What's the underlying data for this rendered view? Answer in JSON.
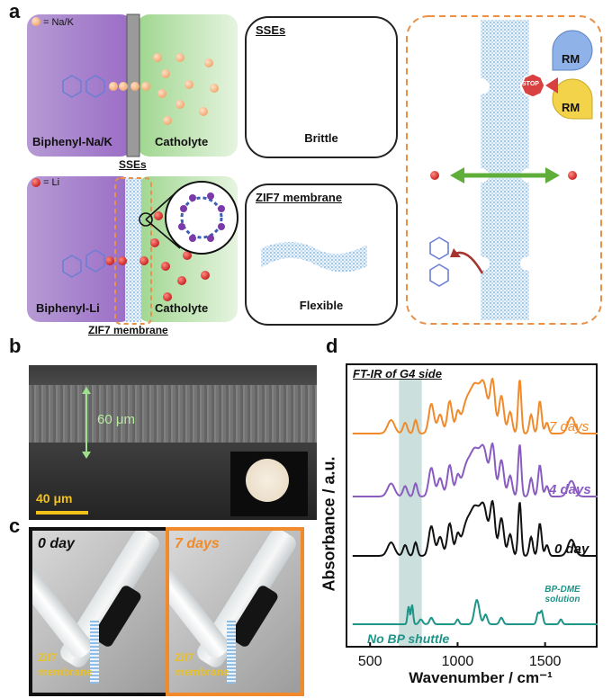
{
  "panels": {
    "a": "a",
    "b": "b",
    "c": "c",
    "d": "d"
  },
  "panel_a": {
    "top": {
      "legend_text": "= Na/K",
      "left_label": "Biphenyl-Na/K",
      "right_label": "Catholyte",
      "separator_label": "SSEs"
    },
    "bottom": {
      "legend_text": "= Li",
      "left_label": "Biphenyl-Li",
      "right_label": "Catholyte",
      "separator_label": "ZIF7 membrane"
    },
    "sses_box": {
      "title": "SSEs",
      "caption": "Brittle"
    },
    "zif_box": {
      "title": "ZIF7 membrane",
      "caption": "Flexible"
    },
    "schematic": {
      "stop_text": "STOP",
      "rm_top": "RM",
      "rm_bottom": "RM"
    }
  },
  "panel_b": {
    "thickness_label": "60 μm",
    "scale_bar_label": "40 μm"
  },
  "panel_c": {
    "left": {
      "time_label": "0 day",
      "membrane_label_1": "Zif7",
      "membrane_label_2": "membrane"
    },
    "right": {
      "time_label": "7 days",
      "membrane_label_1": "Zif7",
      "membrane_label_2": "membrane"
    }
  },
  "chart_data": {
    "type": "line",
    "title": "FT-IR of G4 side",
    "xlabel": "Wavenumber / cm⁻¹",
    "ylabel": "Absorbance / a.u.",
    "xlim": [
      360,
      1800
    ],
    "xticks": [
      "500",
      "1000",
      "1500"
    ],
    "highlight_band": [
      665,
      795
    ],
    "series": [
      {
        "name": "7 days",
        "color": "#f08a2a",
        "label_color": "#f08a2a"
      },
      {
        "name": "4 days",
        "color": "#8a5cc0",
        "label_color": "#8a5cc0"
      },
      {
        "name": "0 day",
        "color": "#111111",
        "label_color": "#111111"
      },
      {
        "name": "BP-DME solution",
        "color": "#1f9488",
        "label_color": "#1f9488"
      }
    ],
    "annotation": "No BP shuttle"
  }
}
